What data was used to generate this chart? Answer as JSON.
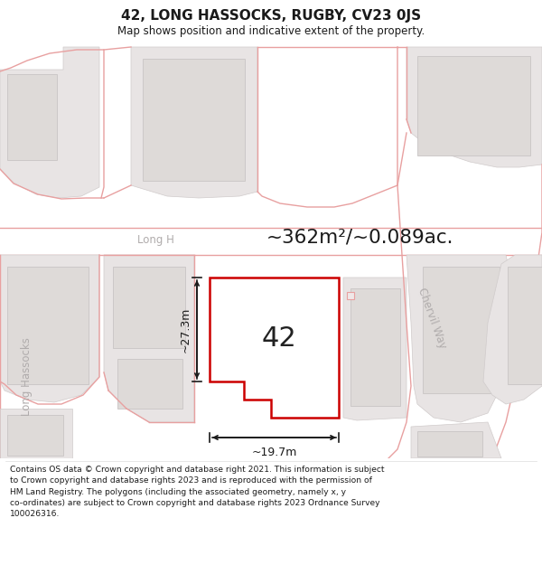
{
  "title": "42, LONG HASSOCKS, RUGBY, CV23 0JS",
  "subtitle": "Map shows position and indicative extent of the property.",
  "footer": "Contains OS data © Crown copyright and database right 2021. This information is subject to Crown copyright and database rights 2023 and is reproduced with the permission of HM Land Registry. The polygons (including the associated geometry, namely x, y co-ordinates) are subject to Crown copyright and database rights 2023 Ordnance Survey 100026316.",
  "area_label": "~362m²/~0.089ac.",
  "property_number": "42",
  "dim_width": "~19.7m",
  "dim_height": "~27.3m",
  "street_long_hassocks": "Long Hassocks",
  "street_chervil_way": "Chervil Way",
  "map_bg": "#f5f3f3",
  "building_outer_fc": "#e8e4e4",
  "building_outer_ec": "#d0cbcb",
  "building_inner_fc": "#dedad8",
  "building_inner_ec": "#c8c4c4",
  "road_line_color": "#e8a0a0",
  "plot_outline_color": "#cc0000",
  "plot_fill": "#ffffff",
  "plot_lw": 1.8,
  "dim_color": "#1a1a1a",
  "street_label_color": "#b0acac",
  "title_color": "#1a1a1a",
  "footer_color": "#1a1a1a"
}
